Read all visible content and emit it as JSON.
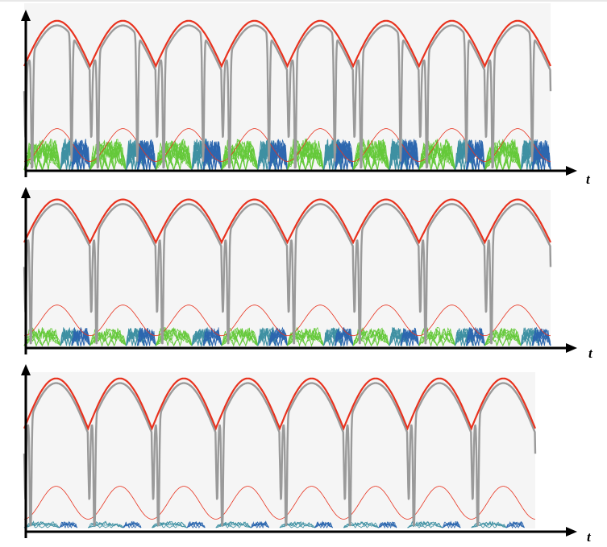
{
  "figure": {
    "axis_label": "t"
  },
  "colors": {
    "panel_bg": "#f5f5f5",
    "envelope": "#e8321e",
    "drive": "#e8321e",
    "signal": "#9a9a9a",
    "axis": "#000000",
    "green": "#4cc21a",
    "teal": "#1f7f94",
    "blue": "#0a4fa3"
  },
  "chart_data": [
    {
      "type": "line",
      "xlabel": "t",
      "ylabel": "",
      "periods": 8,
      "envelope": {
        "max": 0.96,
        "min": 0.67,
        "shape": "cusped arches"
      },
      "drive": {
        "max": 0.27,
        "min": 0.06
      },
      "signal": {
        "dips_per_period": 3
      },
      "subharmonic_bands": {
        "level": 0.2,
        "colors": [
          "green",
          "teal",
          "blue"
        ],
        "density": "high"
      }
    },
    {
      "type": "line",
      "xlabel": "t",
      "ylabel": "",
      "periods": 8,
      "envelope": {
        "max": 0.96,
        "min": 0.68,
        "shape": "cusped arches"
      },
      "drive": {
        "max": 0.27,
        "min": 0.07
      },
      "signal": {
        "dips_per_period": 2
      },
      "subharmonic_bands": {
        "level": 0.12,
        "colors": [
          "green",
          "teal",
          "blue"
        ],
        "density": "medium"
      }
    },
    {
      "type": "line",
      "xlabel": "t",
      "ylabel": "",
      "periods": 8,
      "envelope": {
        "max": 0.96,
        "min": 0.64,
        "shape": "cusped arches"
      },
      "drive": {
        "max": 0.27,
        "min": 0.06
      },
      "signal": {
        "dips_per_period": 2
      },
      "subharmonic_bands": {
        "level": 0.04,
        "colors": [
          "teal",
          "blue"
        ],
        "density": "low"
      }
    }
  ]
}
